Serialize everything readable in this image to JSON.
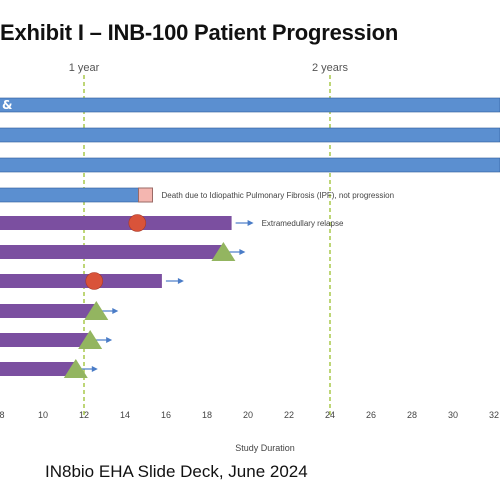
{
  "title": "Exhibit I – INB-100 Patient Progression",
  "caption": "IN8bio EHA Slide Deck, June 2024",
  "chart_data": {
    "type": "bar",
    "orientation": "horizontal",
    "xlabel": "Study Duration",
    "xlim": [
      8,
      32
    ],
    "xticks": [
      8,
      10,
      12,
      14,
      16,
      18,
      20,
      22,
      24,
      26,
      28,
      30,
      32
    ],
    "reference_lines": [
      {
        "x": 12,
        "label": "1 year"
      },
      {
        "x": 24,
        "label": "2 years"
      }
    ],
    "colors": {
      "blue_bar": "#5b8fd0",
      "purple_bar": "#7b4fa0",
      "event_circle": "#d9533a",
      "event_triangle": "#93b560",
      "square_marker": "#f4b6b0",
      "reference_line": "#a8c84a",
      "arrow": "#4a7cc7"
    },
    "bars": [
      {
        "value": 33,
        "color": "blue",
        "ongoing": true,
        "chip": "&"
      },
      {
        "value": 33,
        "color": "blue",
        "ongoing": true
      },
      {
        "value": 33,
        "color": "blue",
        "ongoing": true
      },
      {
        "value": 15,
        "color": "blue",
        "ongoing": false,
        "marker": {
          "shape": "square",
          "x": 15
        },
        "annotation": "Death due to Idiopathic Pulmonary Fibrosis (IPF), not progression"
      },
      {
        "value": 19.2,
        "color": "purple",
        "ongoing": true,
        "marker": {
          "shape": "circle",
          "x": 14.6
        },
        "annotation": "Extramedullary relapse"
      },
      {
        "value": 18.8,
        "color": "purple",
        "ongoing": true,
        "marker": {
          "shape": "triangle",
          "x": 18.8
        }
      },
      {
        "value": 15.8,
        "color": "purple",
        "ongoing": true,
        "marker": {
          "shape": "circle",
          "x": 12.5
        }
      },
      {
        "value": 12.6,
        "color": "purple",
        "ongoing": true,
        "marker": {
          "shape": "triangle",
          "x": 12.6
        }
      },
      {
        "value": 12.3,
        "color": "purple",
        "ongoing": true,
        "marker": {
          "shape": "triangle",
          "x": 12.3
        }
      },
      {
        "value": 11.6,
        "color": "purple",
        "ongoing": true,
        "marker": {
          "shape": "triangle",
          "x": 11.6
        }
      }
    ]
  }
}
